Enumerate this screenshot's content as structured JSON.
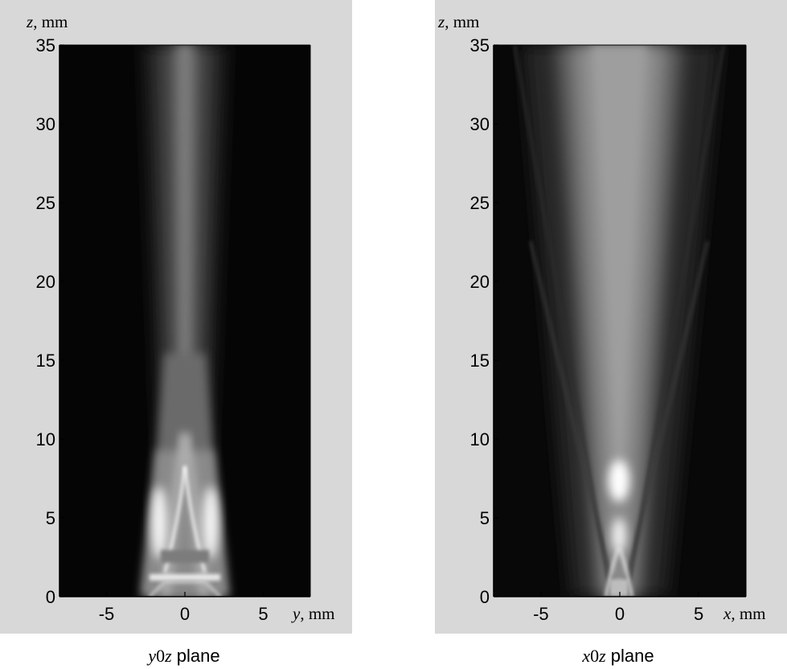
{
  "chart_data": [
    {
      "type": "heatmap",
      "xlabel": {
        "var": "y",
        "unit": ", mm"
      },
      "ylabel": {
        "var": "z",
        "unit": ", mm"
      },
      "xlim": [
        -8,
        8
      ],
      "ylim": [
        0,
        35
      ],
      "xticks": [
        -5,
        0,
        5
      ],
      "yticks": [
        0,
        5,
        10,
        15,
        20,
        25,
        30,
        35
      ],
      "caption": {
        "var_a": "y",
        "zero": "0",
        "var_b": "z",
        "rest": " plane"
      },
      "colormap": "grayscale",
      "grid": false
    },
    {
      "type": "heatmap",
      "xlabel": {
        "var": "x,",
        "unit": " mm"
      },
      "ylabel": {
        "var": "z",
        "unit": ", mm"
      },
      "xlim": [
        -8,
        8
      ],
      "ylim": [
        0,
        35
      ],
      "xticks": [
        -5,
        0,
        5
      ],
      "yticks": [
        0,
        5,
        10,
        15,
        20,
        25,
        30,
        35
      ],
      "caption": {
        "var_a": "x",
        "zero": "0",
        "var_b": "z",
        "rest": " plane"
      },
      "colormap": "grayscale",
      "grid": false
    }
  ],
  "colors": {
    "panel_background": "#d8d8d8",
    "axis": "#000000"
  }
}
